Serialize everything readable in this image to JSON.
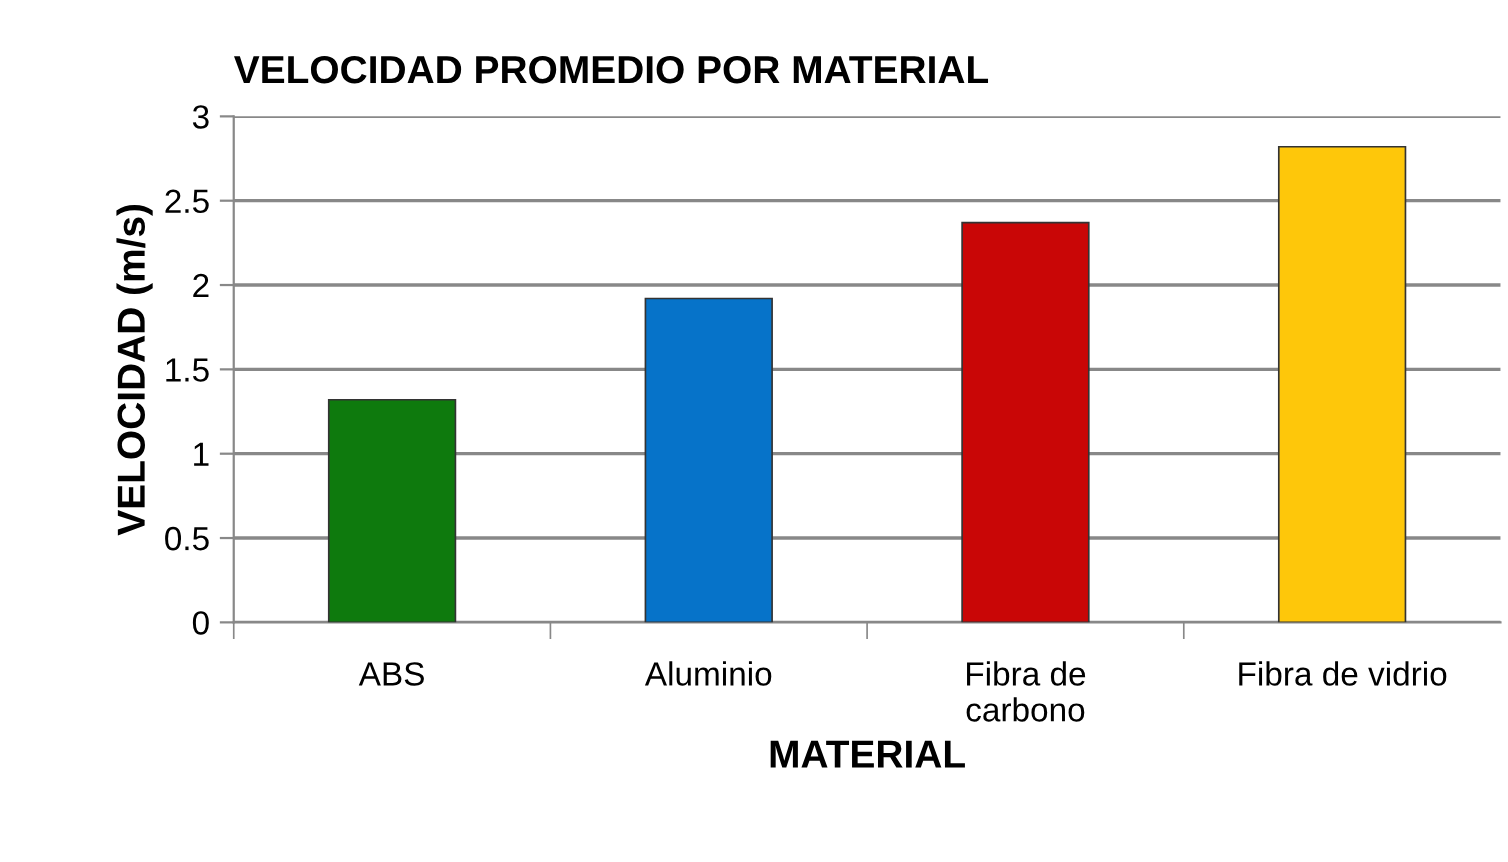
{
  "chart_data": {
    "type": "bar",
    "title": "VELOCIDAD PROMEDIO POR MATERIAL",
    "xlabel": "MATERIAL",
    "ylabel": "VELOCIDAD (m/s)",
    "categories": [
      "ABS",
      "Aluminio",
      "Fibra de\ncarbono",
      "Fibra de vidrio"
    ],
    "values": [
      1.32,
      1.92,
      2.37,
      2.82
    ],
    "colors": [
      "#0e7a0d",
      "#0673c9",
      "#c90606",
      "#fec70a"
    ],
    "ylim": [
      0,
      3
    ],
    "yticks": [
      0,
      0.5,
      1,
      1.5,
      2,
      2.5,
      3
    ],
    "grid": "y",
    "legend": false
  }
}
